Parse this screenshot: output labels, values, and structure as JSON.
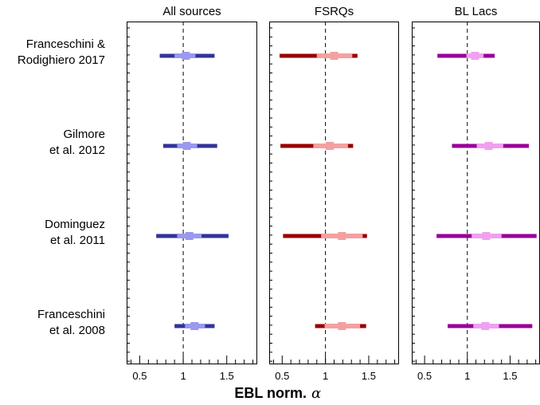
{
  "chart_data": {
    "type": "forest",
    "xlabel": "EBL norm.",
    "xlabel_symbol": "α",
    "xlim": [
      0.35,
      1.85
    ],
    "xticks": [
      0.5,
      1,
      1.5
    ],
    "xtick_labels": [
      "0.5",
      "1",
      "1.5"
    ],
    "reference_line": 1,
    "row_labels": [
      [
        "Franceschini &",
        "Rodighiero 2017"
      ],
      [
        "Gilmore",
        "et al. 2012"
      ],
      [
        "Dominguez",
        "et al. 2011"
      ],
      [
        "Franceschini",
        "et al. 2008"
      ]
    ],
    "panels": [
      {
        "title": "All sources",
        "dark_color": "#333399",
        "light_color": "#9999ee",
        "estimates": [
          {
            "value": 1.03,
            "inner": [
              0.9,
              1.14
            ],
            "outer": [
              0.73,
              1.36
            ]
          },
          {
            "value": 1.04,
            "inner": [
              0.93,
              1.16
            ],
            "outer": [
              0.77,
              1.39
            ]
          },
          {
            "value": 1.07,
            "inner": [
              0.93,
              1.21
            ],
            "outer": [
              0.69,
              1.52
            ]
          },
          {
            "value": 1.13,
            "inner": [
              1.02,
              1.25
            ],
            "outer": [
              0.9,
              1.36
            ]
          }
        ]
      },
      {
        "title": "FSRQs",
        "dark_color": "#990000",
        "light_color": "#f4a0a0",
        "estimates": [
          {
            "value": 1.1,
            "inner": [
              0.9,
              1.31
            ],
            "outer": [
              0.47,
              1.37
            ]
          },
          {
            "value": 1.05,
            "inner": [
              0.86,
              1.26
            ],
            "outer": [
              0.48,
              1.32
            ]
          },
          {
            "value": 1.19,
            "inner": [
              0.95,
              1.43
            ],
            "outer": [
              0.51,
              1.48
            ]
          },
          {
            "value": 1.19,
            "inner": [
              0.99,
              1.4
            ],
            "outer": [
              0.88,
              1.47
            ]
          }
        ]
      },
      {
        "title": "BL Lacs",
        "dark_color": "#990099",
        "light_color": "#f0a0f0",
        "estimates": [
          {
            "value": 1.09,
            "inner": [
              0.99,
              1.19
            ],
            "outer": [
              0.65,
              1.32
            ]
          },
          {
            "value": 1.25,
            "inner": [
              1.11,
              1.42
            ],
            "outer": [
              0.82,
              1.72
            ]
          },
          {
            "value": 1.22,
            "inner": [
              1.05,
              1.4
            ],
            "outer": [
              0.64,
              1.81
            ]
          },
          {
            "value": 1.21,
            "inner": [
              1.07,
              1.37
            ],
            "outer": [
              0.77,
              1.76
            ]
          }
        ]
      }
    ]
  }
}
